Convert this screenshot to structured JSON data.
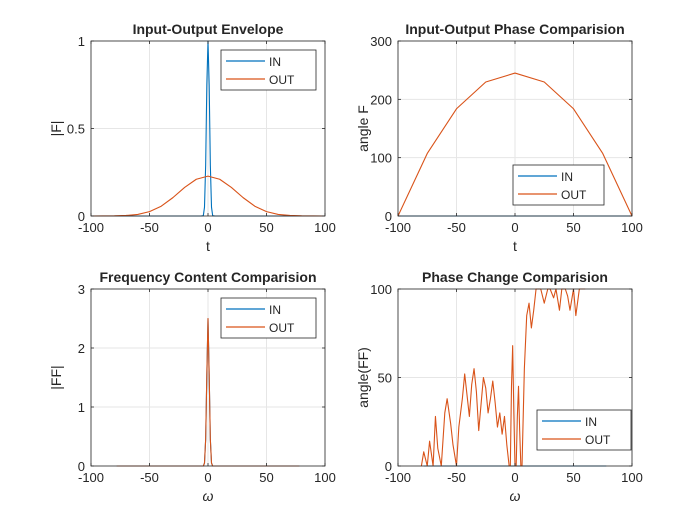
{
  "colors": {
    "in": "#0072BD",
    "out": "#D95319",
    "grid": "#e6e6e6",
    "axis": "#262626"
  },
  "chart_data": [
    {
      "type": "line",
      "title": "Input-Output Envelope",
      "xlabel": "t",
      "ylabel": "|F|",
      "xlim": [
        -100,
        100
      ],
      "ylim": [
        0,
        1
      ],
      "xticks": [
        -100,
        -50,
        0,
        50,
        100
      ],
      "yticks": [
        0,
        0.5,
        1
      ],
      "xtick_labels": [
        "-100",
        "-50",
        "0",
        "50",
        "100"
      ],
      "ytick_labels": [
        "0",
        "0.5",
        "1"
      ],
      "grid": true,
      "legend": "top-right",
      "series": [
        {
          "name": "IN",
          "x": [
            -100,
            -6,
            -4,
            -3,
            -2,
            -1,
            0,
            1,
            2,
            3,
            4,
            6,
            100
          ],
          "y": [
            0,
            0,
            0.002,
            0.05,
            0.29,
            0.75,
            1.0,
            0.75,
            0.29,
            0.05,
            0.002,
            0,
            0
          ]
        },
        {
          "name": "OUT",
          "x": [
            -100,
            -80,
            -70,
            -60,
            -50,
            -40,
            -30,
            -20,
            -10,
            0,
            10,
            20,
            30,
            40,
            50,
            60,
            70,
            80,
            100
          ],
          "y": [
            0,
            0.001,
            0.003,
            0.009,
            0.025,
            0.056,
            0.105,
            0.163,
            0.21,
            0.228,
            0.21,
            0.163,
            0.105,
            0.056,
            0.025,
            0.009,
            0.003,
            0.001,
            0
          ]
        }
      ]
    },
    {
      "type": "line",
      "title": "Input-Output Phase Comparision",
      "xlabel": "t",
      "ylabel": "angle F",
      "xlim": [
        -100,
        100
      ],
      "ylim": [
        0,
        300
      ],
      "xticks": [
        -100,
        -50,
        0,
        50,
        100
      ],
      "yticks": [
        0,
        100,
        200,
        300
      ],
      "xtick_labels": [
        "-100",
        "-50",
        "0",
        "50",
        "100"
      ],
      "ytick_labels": [
        "0",
        "100",
        "200",
        "300"
      ],
      "grid": true,
      "legend": "bottom-right",
      "series": [
        {
          "name": "IN",
          "x": [
            -100,
            100
          ],
          "y": [
            0,
            0
          ]
        },
        {
          "name": "OUT",
          "x": [
            -100,
            -75,
            -50,
            -25,
            0,
            25,
            50,
            75,
            100
          ],
          "y": [
            0,
            107.2,
            183.8,
            229.7,
            245,
            229.7,
            183.8,
            107.2,
            0
          ]
        }
      ]
    },
    {
      "type": "line",
      "title": "Frequency Content Comparision",
      "xlabel": "ω",
      "ylabel": "|FF|",
      "xlim": [
        -100,
        100
      ],
      "ylim": [
        0,
        3
      ],
      "xticks": [
        -100,
        -50,
        0,
        50,
        100
      ],
      "yticks": [
        0,
        1,
        2,
        3
      ],
      "xtick_labels": [
        "-100",
        "-50",
        "0",
        "50",
        "100"
      ],
      "ytick_labels": [
        "0",
        "1",
        "2",
        "3"
      ],
      "grid": true,
      "legend": "top-right",
      "series": [
        {
          "name": "IN",
          "x": [
            -78,
            -4,
            -3,
            -2,
            -1,
            0,
            1,
            2,
            3,
            4,
            78
          ],
          "y": [
            0,
            0,
            0.05,
            0.45,
            1.55,
            2.5,
            1.55,
            0.45,
            0.05,
            0,
            0
          ]
        },
        {
          "name": "OUT",
          "x": [
            -78,
            -4,
            -3,
            -2,
            -1,
            0,
            1,
            2,
            3,
            4,
            78
          ],
          "y": [
            0,
            0,
            0.05,
            0.45,
            1.55,
            2.5,
            1.55,
            0.45,
            0.05,
            0,
            0
          ]
        }
      ]
    },
    {
      "type": "line",
      "title": "Phase Change Comparision",
      "xlabel": "ω",
      "ylabel": "angle(FF)",
      "xlim": [
        -100,
        100
      ],
      "ylim": [
        0,
        100
      ],
      "xticks": [
        -100,
        -50,
        0,
        50,
        100
      ],
      "yticks": [
        0,
        50,
        100
      ],
      "xtick_labels": [
        "-100",
        "-50",
        "0",
        "50",
        "100"
      ],
      "ytick_labels": [
        "0",
        "50",
        "100"
      ],
      "grid": true,
      "legend": "bottom-right",
      "series": [
        {
          "name": "IN",
          "x": [
            -78,
            78
          ],
          "y": [
            0,
            0
          ]
        },
        {
          "name": "OUT",
          "x": [
            -80,
            -78,
            -75,
            -73,
            -70,
            -68,
            -66,
            -63,
            -60,
            -58,
            -55,
            -53,
            -50,
            -48,
            -45,
            -43,
            -41,
            -39,
            -37,
            -35,
            -33,
            -31,
            -29,
            -27,
            -25,
            -23,
            -21,
            -19,
            -17,
            -15,
            -13,
            -11,
            -9,
            -7,
            -5,
            -4,
            -3,
            -2,
            -1,
            0,
            1,
            2,
            3,
            4,
            5,
            6,
            8,
            10,
            12,
            14,
            16,
            18,
            20,
            22,
            25,
            28,
            30,
            33,
            35,
            38,
            40,
            43,
            45,
            47,
            50,
            52,
            55,
            58,
            60
          ],
          "y": [
            0,
            8,
            0,
            14,
            0,
            28,
            10,
            0,
            30,
            38,
            24,
            12,
            0,
            22,
            38,
            52,
            40,
            28,
            46,
            55,
            42,
            20,
            35,
            50,
            44,
            30,
            38,
            48,
            36,
            22,
            30,
            18,
            28,
            12,
            0,
            0,
            45,
            68,
            30,
            0,
            0,
            28,
            45,
            20,
            0,
            0,
            55,
            85,
            92,
            78,
            88,
            100,
            100,
            100,
            92,
            100,
            100,
            95,
            100,
            88,
            100,
            100,
            96,
            88,
            100,
            85,
            100,
            100,
            100
          ]
        }
      ]
    }
  ]
}
